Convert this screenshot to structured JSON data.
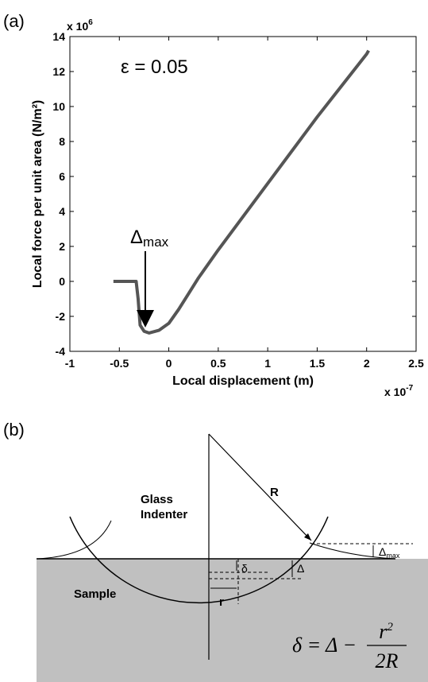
{
  "panel_a_label": "(a)",
  "chart_data": {
    "type": "line",
    "xlabel": "Local displacement (m)",
    "ylabel": "Local force per unit area (N/m²)",
    "x_multiplier": {
      "base": "x 10",
      "exp": "-7"
    },
    "y_multiplier": {
      "base": "x 10",
      "exp": "6"
    },
    "annotations": {
      "epsilon": "ε = 0.05",
      "delta_max": {
        "text": "Δ",
        "sub": "max"
      }
    },
    "x": [
      -0.56,
      -0.45,
      -0.33,
      -0.31,
      -0.29,
      -0.25,
      -0.2,
      -0.1,
      0,
      0.1,
      0.2,
      0.3,
      0.5,
      1,
      1.5,
      2,
      2.02
    ],
    "series": [
      {
        "color": "#555555",
        "values": [
          0,
          0,
          0,
          -1,
          -2.5,
          -2.85,
          -2.95,
          -2.8,
          -2.4,
          -1.6,
          -0.7,
          0.2,
          1.8,
          5.6,
          9.4,
          13,
          13.2
        ]
      }
    ],
    "xlim": [
      -1,
      2.5
    ],
    "xticks": [
      -1,
      -0.5,
      0,
      0.5,
      1,
      1.5,
      2,
      2.5
    ],
    "ylim": [
      -4,
      14
    ],
    "yticks": [
      -4,
      -2,
      0,
      2,
      4,
      6,
      8,
      10,
      12,
      14
    ]
  },
  "diagram": {
    "panel_label": "(b)",
    "indenter": [
      "Glass",
      "Indenter"
    ],
    "radius": "R",
    "sample": "Sample",
    "small_delta": "δ",
    "big_delta": "Δ",
    "r": "r",
    "delta_max": {
      "text": "Δ",
      "sub": "max"
    },
    "formula": {
      "lhs": "δ = Δ −",
      "numerator": "r",
      "numerator_exp": "2",
      "denominator": "2R"
    }
  }
}
